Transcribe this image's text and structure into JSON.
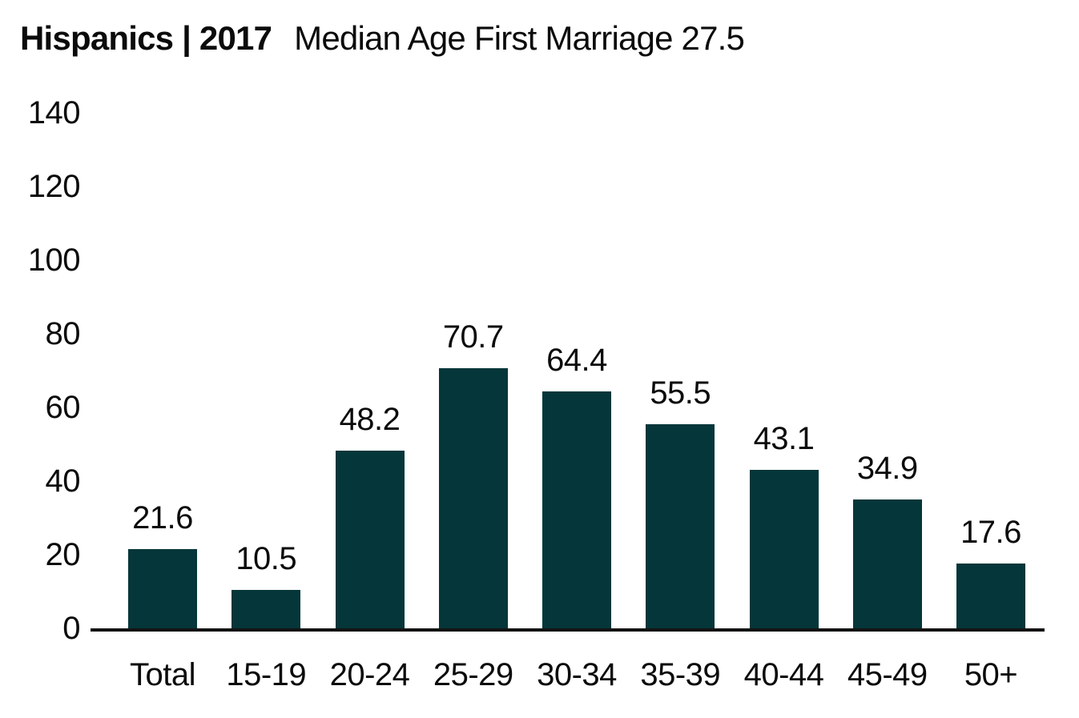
{
  "header": {
    "title_bold": "Hispanics | 2017",
    "title_regular": "Median Age First Marriage 27.5"
  },
  "chart_data": {
    "type": "bar",
    "title": "Hispanics | 2017 Median Age First Marriage 27.5",
    "group_label": "Hispanics",
    "year": "2017",
    "median_age_first_marriage": 27.5,
    "categories": [
      "Total",
      "15-19",
      "20-24",
      "25-29",
      "30-34",
      "35-39",
      "40-44",
      "45-49",
      "50+"
    ],
    "values": [
      21.6,
      10.5,
      48.2,
      70.7,
      64.4,
      55.5,
      43.1,
      34.9,
      17.6
    ],
    "value_labels": [
      "21.6",
      "10.5",
      "48.2",
      "70.7",
      "64.4",
      "55.5",
      "43.1",
      "34.9",
      "17.6"
    ],
    "yticks": [
      0,
      20,
      40,
      60,
      80,
      100,
      120,
      140
    ],
    "ylim": [
      0,
      140
    ],
    "xlabel": "",
    "ylabel": "",
    "grid": false,
    "legend_position": "none",
    "bar_color": "#053639",
    "axis_color": "#121212",
    "text_color": "#0b0b0b"
  }
}
